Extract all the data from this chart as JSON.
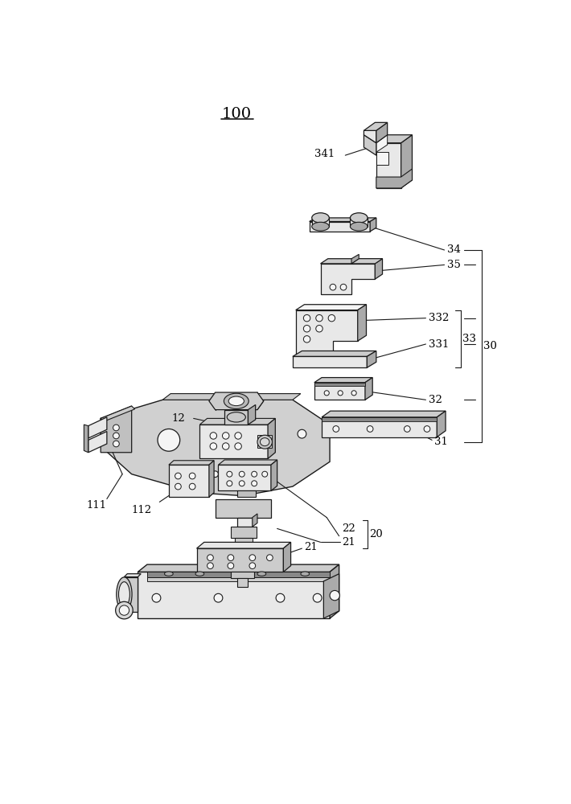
{
  "title": "100",
  "bg": "#ffffff",
  "lc": "#1a1a1a",
  "fills": {
    "light": "#e8e8e8",
    "mid": "#cccccc",
    "dark": "#aaaaaa",
    "darker": "#888888",
    "white": "#f5f5f5"
  }
}
